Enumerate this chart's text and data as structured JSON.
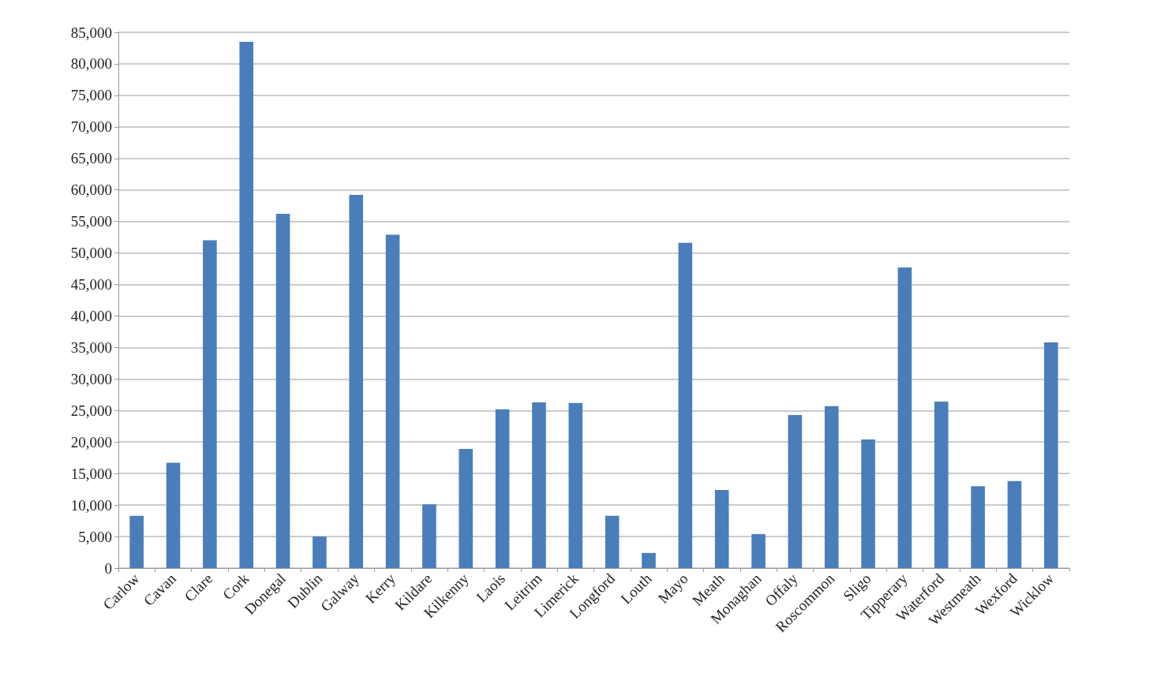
{
  "chart_data": {
    "type": "bar",
    "categories": [
      "Carlow",
      "Cavan",
      "Clare",
      "Cork",
      "Donegal",
      "Dublin",
      "Galway",
      "Kerry",
      "Kildare",
      "Kilkenny",
      "Laois",
      "Leitrim",
      "Limerick",
      "Longford",
      "Louth",
      "Mayo",
      "Meath",
      "Monaghan",
      "Offaly",
      "Roscommon",
      "Sligo",
      "Tipperary",
      "Waterford",
      "Westmeath",
      "Wexford",
      "Wicklow"
    ],
    "values": [
      8300,
      16700,
      52000,
      83500,
      56200,
      5000,
      59200,
      52900,
      10100,
      18900,
      25200,
      26300,
      26200,
      8300,
      2400,
      51600,
      12400,
      5400,
      24300,
      25700,
      20400,
      47700,
      26400,
      13000,
      13800,
      35800
    ],
    "color": "#4a7ebb",
    "ylim": [
      0,
      85000
    ],
    "yticks": [
      {
        "value": 0,
        "label": "0"
      },
      {
        "value": 5000,
        "label": "5,000"
      },
      {
        "value": 10000,
        "label": "10,000"
      },
      {
        "value": 15000,
        "label": "15,000"
      },
      {
        "value": 20000,
        "label": "20,000"
      },
      {
        "value": 25000,
        "label": "25,000"
      },
      {
        "value": 30000,
        "label": "30,000"
      },
      {
        "value": 35000,
        "label": "35,000"
      },
      {
        "value": 40000,
        "label": "40,000"
      },
      {
        "value": 45000,
        "label": "45,000"
      },
      {
        "value": 50000,
        "label": "50,000"
      },
      {
        "value": 55000,
        "label": "55,000"
      },
      {
        "value": 60000,
        "label": "60,000"
      },
      {
        "value": 65000,
        "label": "65,000"
      },
      {
        "value": 70000,
        "label": "70,000"
      },
      {
        "value": 75000,
        "label": "75,000"
      },
      {
        "value": 80000,
        "label": "80,000"
      },
      {
        "value": 85000,
        "label": "85,000"
      }
    ],
    "grid": true
  }
}
